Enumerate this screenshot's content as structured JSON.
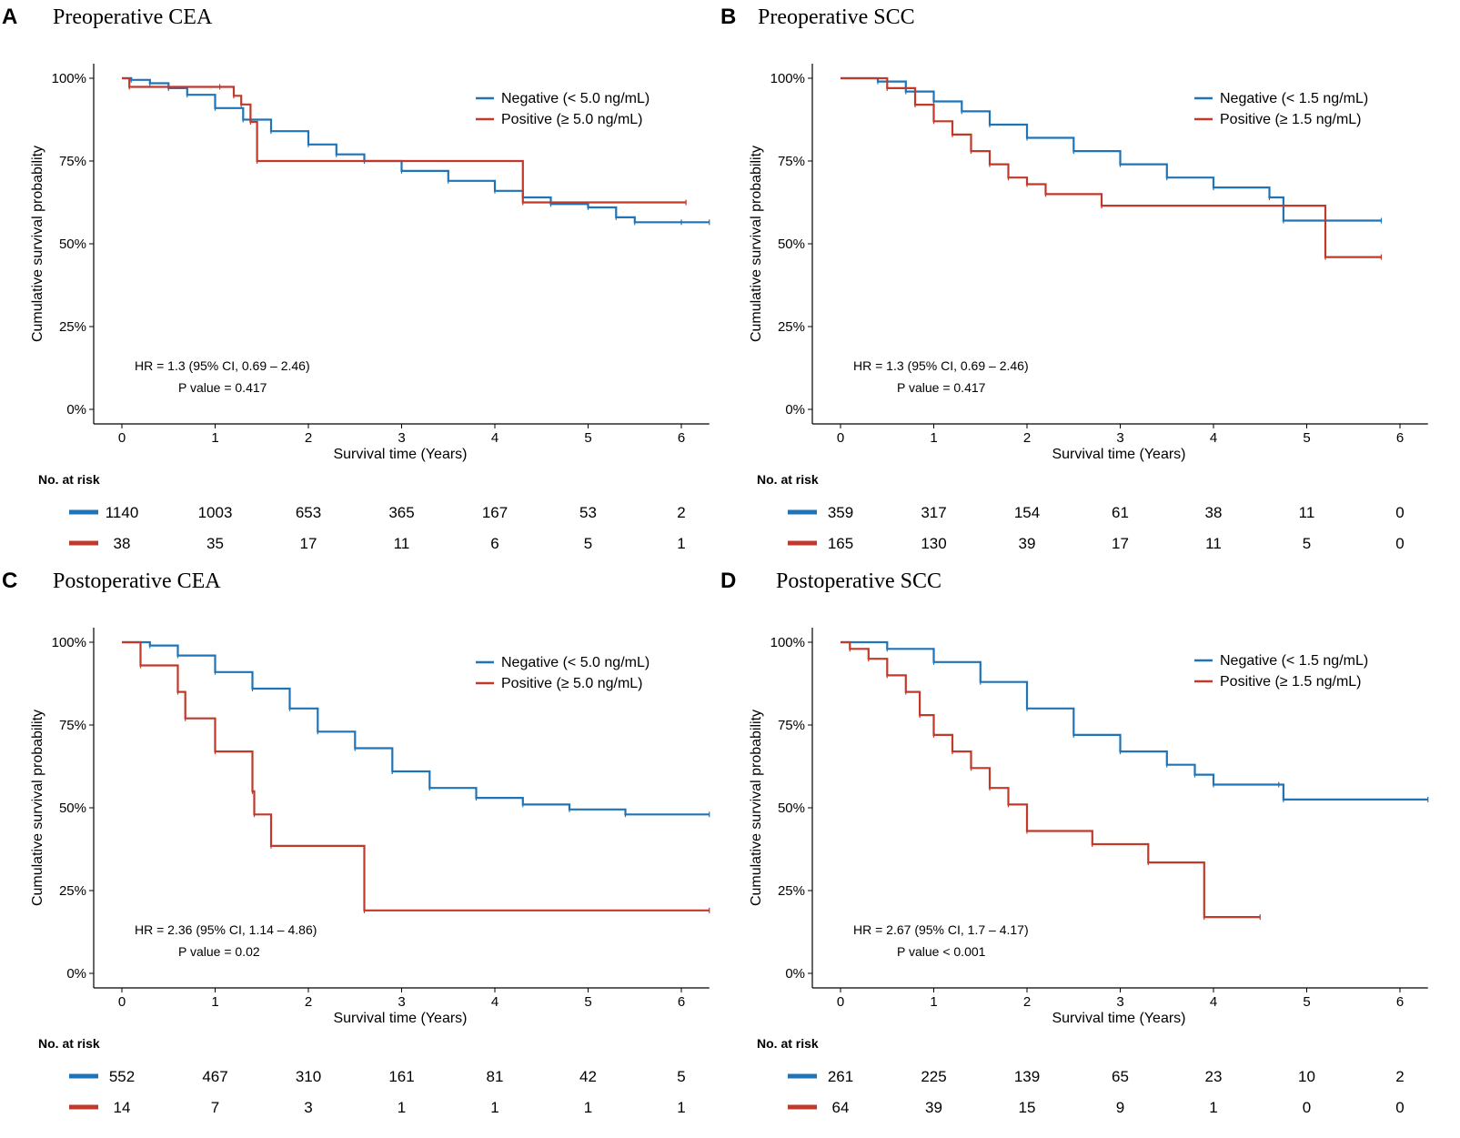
{
  "colors": {
    "negative": "#1f74b8",
    "positive": "#c0392b",
    "axis": "#000000"
  },
  "chart_data": [
    {
      "type": "line",
      "panel_letter": "A",
      "title": "Preoperative CEA",
      "xlabel": "Survival time (Years)",
      "ylabel": "Cumulative survival probability",
      "xlim": [
        0,
        6.3
      ],
      "ylim": [
        0,
        1
      ],
      "x_ticks": [
        0,
        1,
        2,
        3,
        4,
        5,
        6
      ],
      "y_ticks": [
        {
          "value": 0,
          "label": "0%"
        },
        {
          "value": 0.25,
          "label": "25%"
        },
        {
          "value": 0.5,
          "label": "50%"
        },
        {
          "value": 0.75,
          "label": "75%"
        },
        {
          "value": 1,
          "label": "100%"
        }
      ],
      "legend_position": "top-right",
      "series": [
        {
          "name": "Negative (< 5.0 ng/mL)",
          "color": "#1f74b8",
          "x": [
            0,
            0.1,
            0.3,
            0.5,
            0.7,
            1.0,
            1.3,
            1.6,
            2.0,
            2.3,
            2.6,
            3.0,
            3.5,
            4.0,
            4.3,
            4.6,
            5.0,
            5.3,
            5.5,
            6.0,
            6.3
          ],
          "y": [
            1.0,
            0.995,
            0.985,
            0.97,
            0.95,
            0.91,
            0.875,
            0.84,
            0.8,
            0.77,
            0.75,
            0.72,
            0.69,
            0.66,
            0.64,
            0.62,
            0.61,
            0.58,
            0.565,
            0.565,
            0.565
          ]
        },
        {
          "name": "Positive (≥ 5.0 ng/mL)",
          "color": "#c0392b",
          "x": [
            0,
            0.08,
            1.05,
            1.2,
            1.28,
            1.38,
            1.45,
            4.3,
            6.05
          ],
          "y": [
            1.0,
            0.974,
            0.974,
            0.947,
            0.921,
            0.868,
            0.75,
            0.625,
            0.625
          ]
        }
      ],
      "annotation": {
        "hr": "HR = 1.3 (95% CI, 0.69 – 2.46)",
        "p_value": "P value = 0.417"
      },
      "risk_table": {
        "header": "No. at risk",
        "negative": [
          "1140",
          "1003",
          "653",
          "365",
          "167",
          "53",
          "2"
        ],
        "positive": [
          "38",
          "35",
          "17",
          "11",
          "6",
          "5",
          "1"
        ]
      }
    },
    {
      "type": "line",
      "panel_letter": "B",
      "title": "Preoperative SCC",
      "xlabel": "Survival time (Years)",
      "ylabel": "Cumulative survival probability",
      "xlim": [
        0,
        6.3
      ],
      "ylim": [
        0,
        1
      ],
      "x_ticks": [
        0,
        1,
        2,
        3,
        4,
        5,
        6
      ],
      "y_ticks": [
        {
          "value": 0,
          "label": "0%"
        },
        {
          "value": 0.25,
          "label": "25%"
        },
        {
          "value": 0.5,
          "label": "50%"
        },
        {
          "value": 0.75,
          "label": "75%"
        },
        {
          "value": 1,
          "label": "100%"
        }
      ],
      "legend_position": "top-right",
      "series": [
        {
          "name": "Negative (< 1.5 ng/mL)",
          "color": "#1f74b8",
          "x": [
            0,
            0.4,
            0.7,
            1.0,
            1.3,
            1.6,
            2.0,
            2.5,
            3.0,
            3.5,
            4.0,
            4.6,
            4.75,
            5.8
          ],
          "y": [
            1.0,
            0.99,
            0.96,
            0.93,
            0.9,
            0.86,
            0.82,
            0.78,
            0.74,
            0.7,
            0.67,
            0.64,
            0.57,
            0.57
          ]
        },
        {
          "name": "Positive (≥ 1.5 ng/mL)",
          "color": "#c0392b",
          "x": [
            0,
            0.5,
            0.8,
            1.0,
            1.2,
            1.4,
            1.6,
            1.8,
            2.0,
            2.2,
            2.8,
            5.2,
            5.8
          ],
          "y": [
            1.0,
            0.97,
            0.92,
            0.87,
            0.83,
            0.78,
            0.74,
            0.7,
            0.68,
            0.65,
            0.615,
            0.46,
            0.46
          ]
        }
      ],
      "annotation": {
        "hr": "HR = 1.3 (95% CI, 0.69 – 2.46)",
        "p_value": "P value = 0.417"
      },
      "risk_table": {
        "header": "No. at risk",
        "negative": [
          "359",
          "317",
          "154",
          "61",
          "38",
          "11",
          "0"
        ],
        "positive": [
          "165",
          "130",
          "39",
          "17",
          "11",
          "5",
          "0"
        ]
      }
    },
    {
      "type": "line",
      "panel_letter": "C",
      "title": "Postoperative CEA",
      "xlabel": "Survival time (Years)",
      "ylabel": "Cumulative survival probability",
      "xlim": [
        0,
        6.3
      ],
      "ylim": [
        0,
        1
      ],
      "x_ticks": [
        0,
        1,
        2,
        3,
        4,
        5,
        6
      ],
      "y_ticks": [
        {
          "value": 0,
          "label": "0%"
        },
        {
          "value": 0.25,
          "label": "25%"
        },
        {
          "value": 0.5,
          "label": "50%"
        },
        {
          "value": 0.75,
          "label": "75%"
        },
        {
          "value": 1,
          "label": "100%"
        }
      ],
      "legend_position": "top-right",
      "series": [
        {
          "name": "Negative (< 5.0 ng/mL)",
          "color": "#1f74b8",
          "x": [
            0,
            0.3,
            0.6,
            1.0,
            1.4,
            1.8,
            2.1,
            2.5,
            2.9,
            3.3,
            3.8,
            4.3,
            4.8,
            5.4,
            6.3
          ],
          "y": [
            1.0,
            0.99,
            0.96,
            0.91,
            0.86,
            0.8,
            0.73,
            0.68,
            0.61,
            0.56,
            0.53,
            0.51,
            0.495,
            0.48,
            0.48
          ]
        },
        {
          "name": "Positive (≥ 5.0 ng/mL)",
          "color": "#c0392b",
          "x": [
            0,
            0.2,
            0.6,
            0.68,
            1.0,
            1.4,
            1.42,
            1.6,
            2.6,
            6.3
          ],
          "y": [
            1.0,
            0.93,
            0.85,
            0.77,
            0.67,
            0.55,
            0.48,
            0.385,
            0.19,
            0.19
          ]
        }
      ],
      "annotation": {
        "hr": "HR = 2.36 (95% CI, 1.14 – 4.86)",
        "p_value": "P value = 0.02"
      },
      "risk_table": {
        "header": "No. at risk",
        "negative": [
          "552",
          "467",
          "310",
          "161",
          "81",
          "42",
          "5"
        ],
        "positive": [
          "14",
          "7",
          "3",
          "1",
          "1",
          "1",
          "1"
        ]
      }
    },
    {
      "type": "line",
      "panel_letter": "D",
      "title": "Postoperative SCC",
      "xlabel": "Survival time (Years)",
      "ylabel": "Cumulative survival probability",
      "xlim": [
        0,
        6.3
      ],
      "ylim": [
        0,
        1
      ],
      "x_ticks": [
        0,
        1,
        2,
        3,
        4,
        5,
        6
      ],
      "y_ticks": [
        {
          "value": 0,
          "label": "0%"
        },
        {
          "value": 0.25,
          "label": "25%"
        },
        {
          "value": 0.5,
          "label": "50%"
        },
        {
          "value": 0.75,
          "label": "75%"
        },
        {
          "value": 1,
          "label": "100%"
        }
      ],
      "legend_position": "top-right",
      "series": [
        {
          "name": "Negative (< 1.5 ng/mL)",
          "color": "#1f74b8",
          "x": [
            0,
            0.5,
            1.0,
            1.5,
            2.0,
            2.5,
            3.0,
            3.5,
            3.8,
            4.0,
            4.7,
            4.75,
            6.3
          ],
          "y": [
            1.0,
            0.98,
            0.94,
            0.88,
            0.8,
            0.72,
            0.67,
            0.63,
            0.6,
            0.57,
            0.57,
            0.525,
            0.525
          ]
        },
        {
          "name": "Positive (≥ 1.5 ng/mL)",
          "color": "#c0392b",
          "x": [
            0,
            0.1,
            0.3,
            0.5,
            0.7,
            0.85,
            1.0,
            1.2,
            1.4,
            1.6,
            1.8,
            2.0,
            2.7,
            3.3,
            3.9,
            4.5
          ],
          "y": [
            1.0,
            0.98,
            0.95,
            0.9,
            0.85,
            0.78,
            0.72,
            0.67,
            0.62,
            0.56,
            0.51,
            0.43,
            0.39,
            0.335,
            0.17,
            0.17
          ]
        }
      ],
      "annotation": {
        "hr": "HR = 2.67 (95% CI, 1.7 – 4.17)",
        "p_value": "P value < 0.001"
      },
      "risk_table": {
        "header": "No. at risk",
        "negative": [
          "261",
          "225",
          "139",
          "65",
          "23",
          "10",
          "2"
        ],
        "positive": [
          "64",
          "39",
          "15",
          "9",
          "1",
          "0",
          "0"
        ]
      }
    }
  ]
}
